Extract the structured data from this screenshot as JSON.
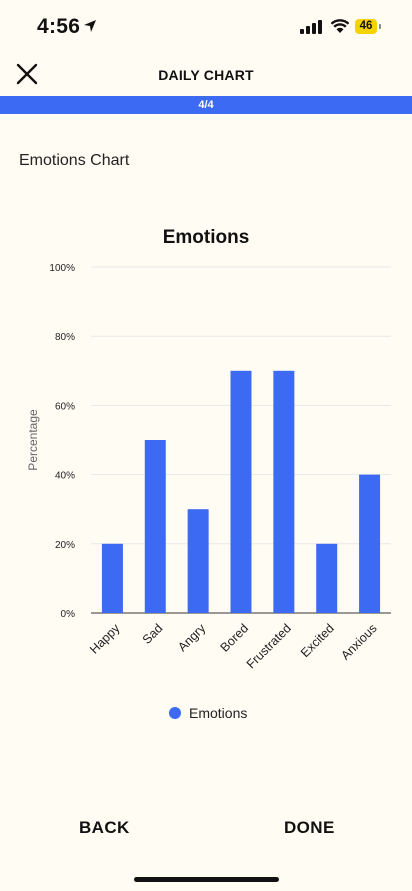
{
  "status_bar": {
    "time": "4:56",
    "battery": "46",
    "icons": [
      "location-arrow-icon",
      "cellular-signal-icon",
      "wifi-icon",
      "battery-icon"
    ]
  },
  "header": {
    "title": "DAILY CHART",
    "close_icon": "close-icon"
  },
  "progress": {
    "label": "4/4",
    "fraction": 1.0,
    "color": "#3d6af2"
  },
  "page": {
    "subtitle": "Emotions Chart"
  },
  "chart_data": {
    "type": "bar",
    "title": "Emotions",
    "xlabel": "",
    "ylabel": "Percentage",
    "categories": [
      "Happy",
      "Sad",
      "Angry",
      "Bored",
      "Frustrated",
      "Excited",
      "Anxious"
    ],
    "series": [
      {
        "name": "Emotions",
        "values": [
          20,
          50,
          30,
          70,
          70,
          20,
          40
        ],
        "color": "#3d6af2"
      }
    ],
    "ylim": [
      0,
      100
    ],
    "yticks": [
      "0%",
      "20%",
      "40%",
      "60%",
      "80%",
      "100%"
    ],
    "ytick_values": [
      0,
      20,
      40,
      60,
      80,
      100
    ],
    "grid": true,
    "legend": "bottom-center"
  },
  "footer": {
    "back_label": "BACK",
    "done_label": "DONE"
  }
}
